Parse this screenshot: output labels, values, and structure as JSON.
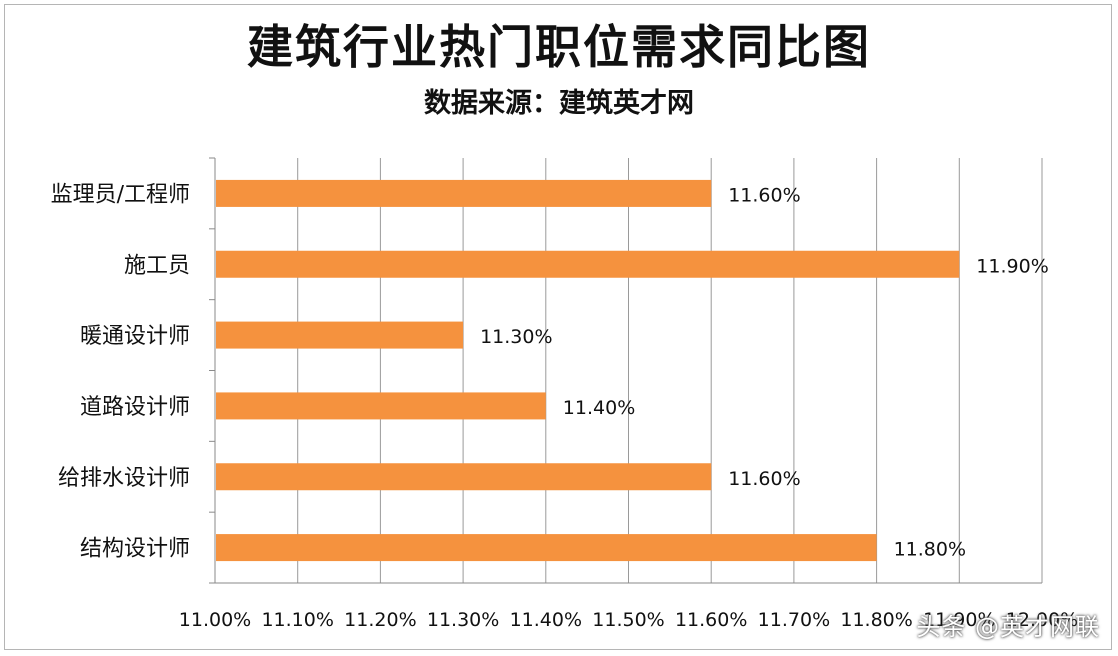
{
  "chart_data": {
    "type": "bar",
    "orientation": "horizontal",
    "title": "建筑行业热门职位需求同比图",
    "subtitle": "数据来源：建筑英才网",
    "categories": [
      "监理员/工程师",
      "施工员",
      "暖通设计师",
      "道路设计师",
      "给排水设计师",
      "结构设计师"
    ],
    "values": [
      11.6,
      11.9,
      11.3,
      11.4,
      11.6,
      11.8
    ],
    "value_labels": [
      "11.60%",
      "11.90%",
      "11.30%",
      "11.40%",
      "11.60%",
      "11.80%"
    ],
    "xlim": [
      11.0,
      12.0
    ],
    "x_ticks": [
      "11.00%",
      "11.10%",
      "11.20%",
      "11.30%",
      "11.40%",
      "11.50%",
      "11.60%",
      "11.70%",
      "11.80%",
      "11.90%",
      "12.00%"
    ],
    "bar_color": "#f5923e",
    "grid": true,
    "legend": "none"
  },
  "watermark": "头条 @英才网联"
}
